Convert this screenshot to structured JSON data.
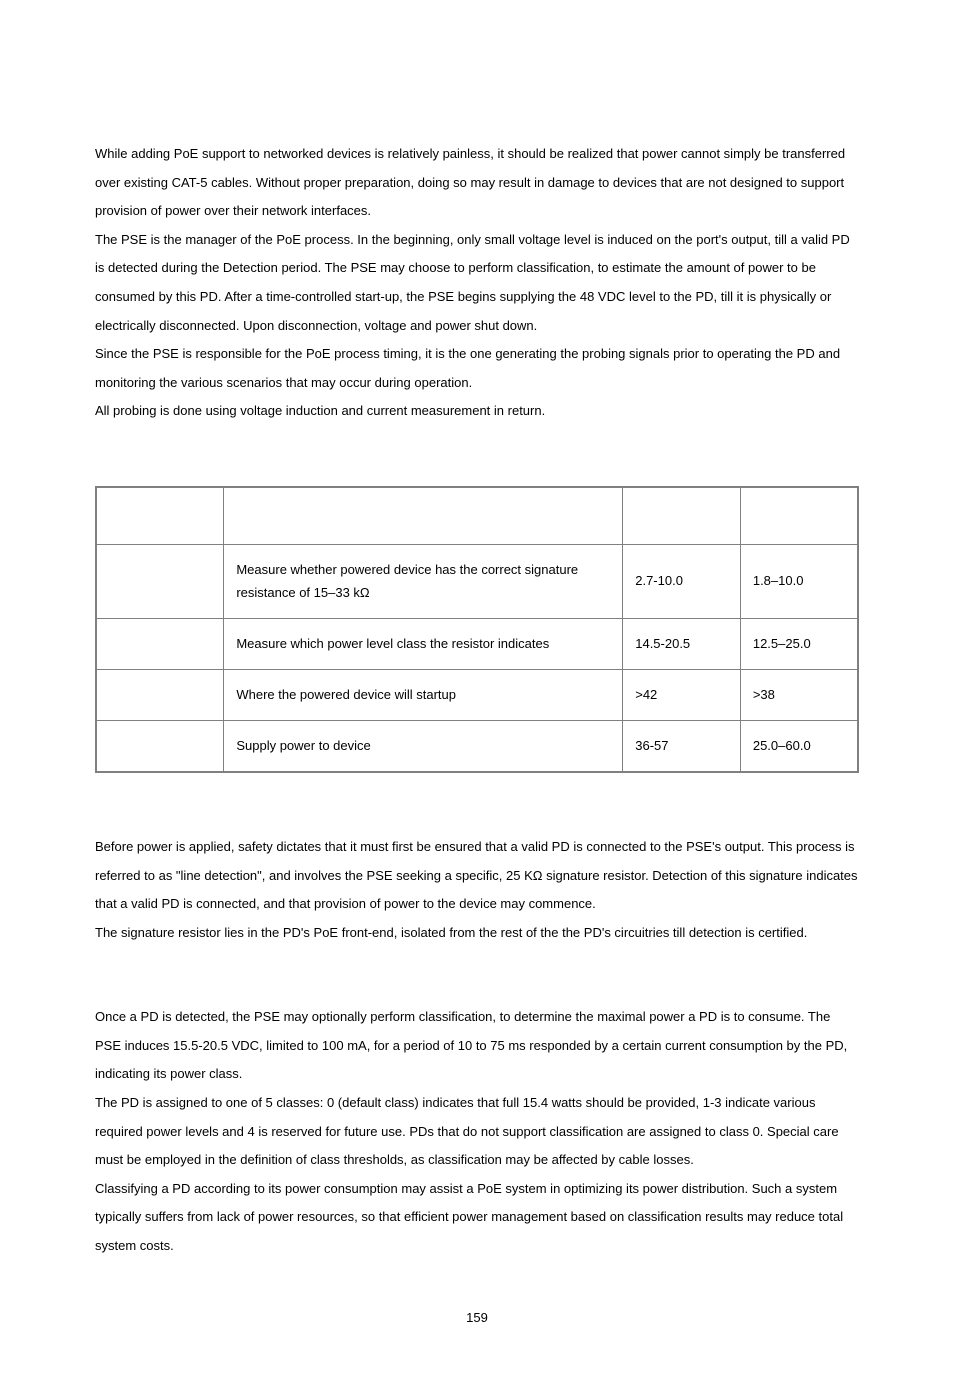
{
  "paragraphs": {
    "p1": "While adding PoE support to networked devices is relatively painless, it should be realized that power cannot simply be transferred over existing CAT-5 cables. Without proper preparation, doing so may result in damage to devices that are not designed to support provision of power over their network interfaces.",
    "p2": "The PSE is the manager of the PoE process. In the beginning, only small voltage level is induced on the port's output, till a valid PD is detected during the Detection period. The PSE may choose to perform classification, to estimate the amount of power to be consumed by this PD. After a time-controlled start-up, the PSE begins supplying the 48 VDC level to the PD, till it is physically or electrically disconnected. Upon disconnection, voltage and power shut down.",
    "p3": "Since the PSE is responsible for the PoE process timing, it is the one generating the probing signals prior to operating the PD and monitoring the various scenarios that may occur during operation.",
    "p4": "All probing is done using voltage induction and current measurement in return.",
    "p5": "Before power is applied, safety dictates that it must first be ensured that a valid PD is connected to the PSE's output. This process is referred to as \"line detection\", and involves the PSE seeking a specific, 25 KΩ signature resistor. Detection of this signature indicates that a valid PD is connected, and that provision of power to the device may commence.",
    "p6": "The signature resistor lies in the PD's PoE front-end, isolated from the rest of the the PD's circuitries till detection is certified.",
    "p7": "Once a PD is detected, the PSE may optionally perform classification, to determine the maximal power a PD is to consume. The PSE induces 15.5-20.5 VDC, limited to 100 mA, for a period of 10 to 75 ms responded by a certain current consumption by the PD, indicating its power class.",
    "p8": "The PD is assigned to one of 5 classes: 0 (default class) indicates that full 15.4 watts should be provided, 1-3 indicate various required power levels and 4 is reserved for future use. PDs that do not support classification are assigned to class 0. Special care must be employed in the definition of class thresholds, as classification may be affected by cable losses.",
    "p9": "Classifying a PD according to its power consumption may assist a PoE system in optimizing its power distribution. Such a system typically suffers from lack of power resources, so that efficient power management based on classification results may reduce total system costs."
  },
  "table": {
    "headers": [
      "",
      "",
      "",
      ""
    ],
    "rows": [
      {
        "c1": "",
        "c2": "Measure whether powered device has the correct signature resistance of 15–33 kΩ",
        "c3": "2.7-10.0",
        "c4": "1.8–10.0"
      },
      {
        "c1": "",
        "c2": "Measure which power level class the resistor indicates",
        "c3": "14.5-20.5",
        "c4": "12.5–25.0"
      },
      {
        "c1": "",
        "c2": "Where the powered device will startup",
        "c3": ">42",
        "c4": ">38"
      },
      {
        "c1": "",
        "c2": "Supply power to device",
        "c3": "36-57",
        "c4": "25.0–60.0"
      }
    ]
  },
  "pageNumber": "159"
}
